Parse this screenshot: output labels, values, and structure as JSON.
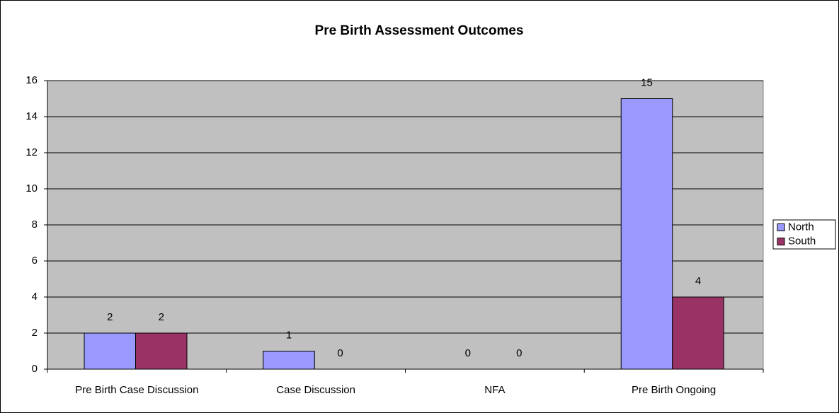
{
  "chart_data": {
    "type": "bar",
    "title": "Pre Birth Assessment Outcomes",
    "categories": [
      "Pre Birth Case Discussion",
      "Case Discussion",
      "NFA",
      "Pre Birth Ongoing"
    ],
    "series": [
      {
        "name": "North",
        "color": "#9999ff",
        "values": [
          2,
          1,
          0,
          15
        ]
      },
      {
        "name": "South",
        "color": "#993366",
        "values": [
          2,
          0,
          0,
          4
        ]
      }
    ],
    "ylim": [
      0,
      16
    ],
    "yticks": [
      0,
      2,
      4,
      6,
      8,
      10,
      12,
      14,
      16
    ],
    "grid": true,
    "legend": "right"
  }
}
